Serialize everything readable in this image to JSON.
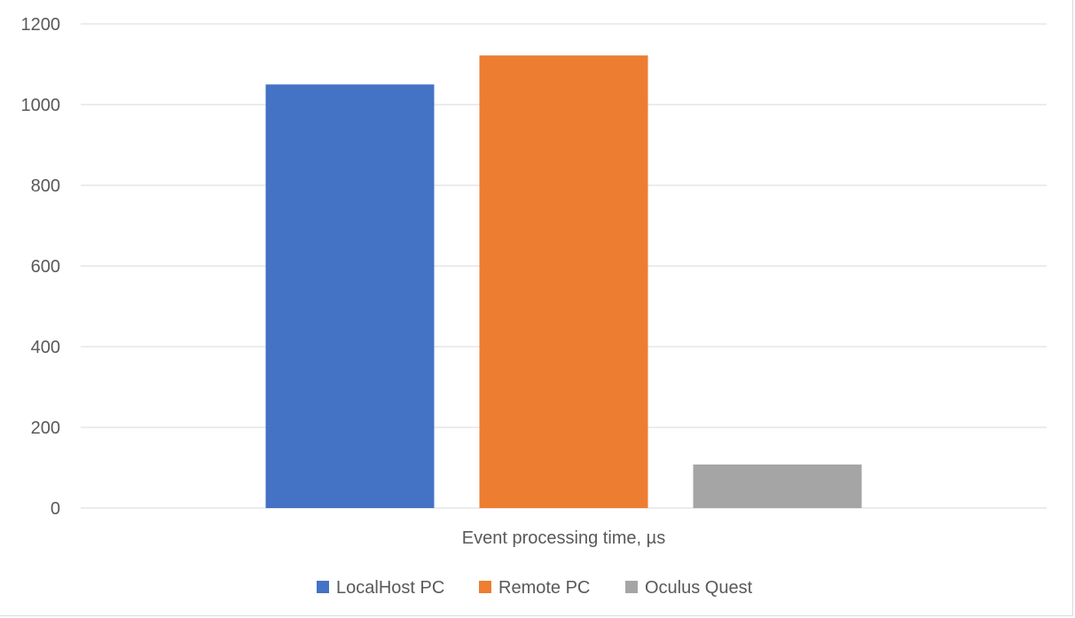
{
  "chart_data": {
    "type": "bar",
    "categories": [
      "Event processing time, µs"
    ],
    "series": [
      {
        "name": "LocalHost PC",
        "values": [
          1050
        ],
        "color": "#4472C4"
      },
      {
        "name": "Remote PC",
        "values": [
          1122
        ],
        "color": "#ED7D31"
      },
      {
        "name": "Oculus Quest",
        "values": [
          108
        ],
        "color": "#A5A5A5"
      }
    ],
    "ylim": [
      0,
      1200
    ],
    "yticks": [
      "0",
      "200",
      "400",
      "600",
      "800",
      "1000",
      "1200"
    ],
    "grid": true,
    "legend": "bottom"
  }
}
